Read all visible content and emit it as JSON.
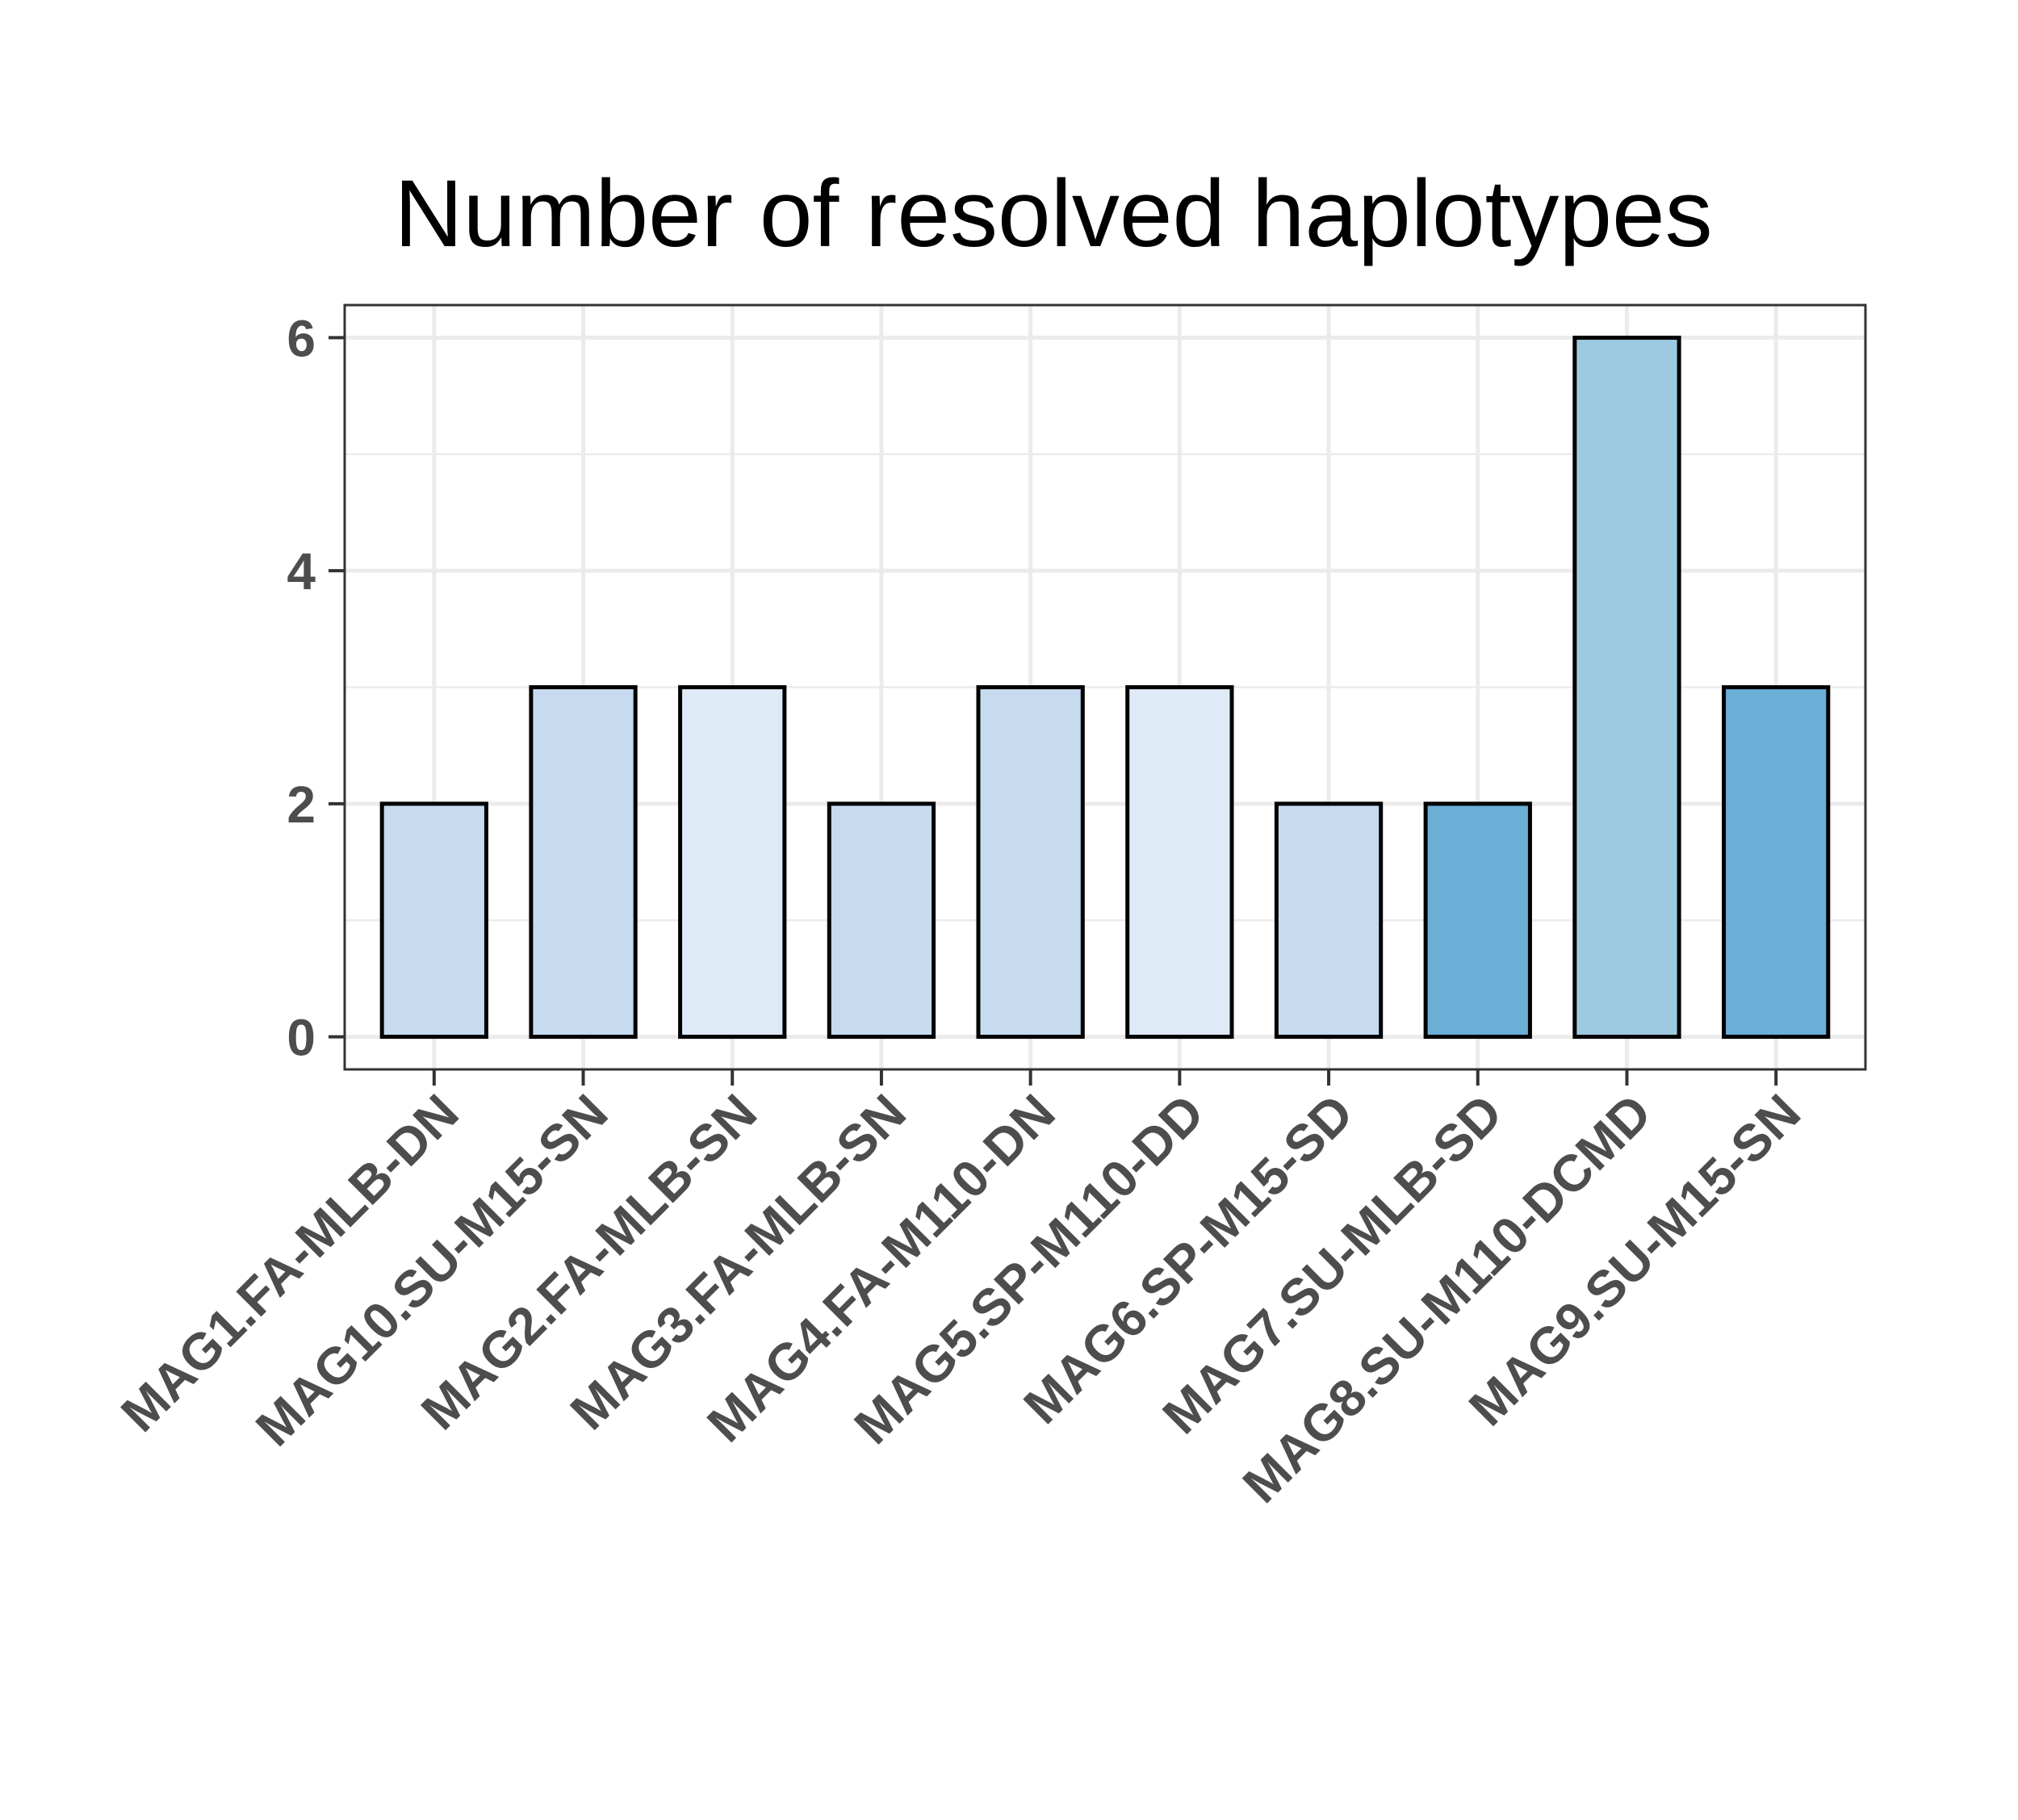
{
  "chart_data": {
    "type": "bar",
    "title": "Number of resolved haplotypes",
    "xlabel": "",
    "ylabel": "",
    "categories": [
      "MAG1.FA-MLB-DN",
      "MAG10.SU-M15-SN",
      "MAG2.FA-MLB-SN",
      "MAG3.FA-MLB-SN",
      "MAG4.FA-M110-DN",
      "MAG5.SP-M110-DD",
      "MAG6.SP-M15-SD",
      "MAG7.SU-MLB-SD",
      "MAG8.SU-M110-DCMD",
      "MAG9.SU-M15-SN"
    ],
    "values": [
      2,
      3,
      3,
      2,
      3,
      3,
      2,
      2,
      6,
      3
    ],
    "bar_colors": [
      "#c6dbef",
      "#c6dbef",
      "#deebf7",
      "#c6dbef",
      "#c6dbef",
      "#deebf7",
      "#c6dbef",
      "#6baed6",
      "#9ecae1",
      "#6baed6"
    ],
    "bar_outline_color": "#000000",
    "ylim": [
      -0.28,
      6.28
    ],
    "yticks": [
      0,
      2,
      4,
      6
    ],
    "ytick_labels": [
      "0",
      "2",
      "4",
      "6"
    ],
    "grid": true,
    "legend": "none",
    "panel_border_color": "#333333",
    "grid_color": "#ebebeb"
  }
}
